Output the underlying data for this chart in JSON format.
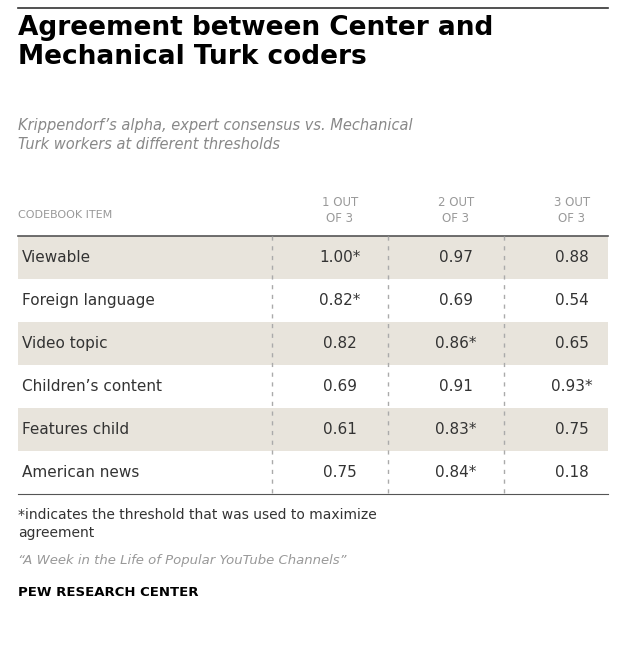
{
  "title": "Agreement between Center and\nMechanical Turk coders",
  "subtitle": "Krippendorf’s alpha, expert consensus vs. Mechanical\nTurk workers at different thresholds",
  "col_header_label": "CODEBOOK ITEM",
  "col_headers": [
    "1 OUT\nOF 3",
    "2 OUT\nOF 3",
    "3 OUT\nOF 3"
  ],
  "rows": [
    {
      "label": "Viewable",
      "values": [
        "1.00*",
        "0.97",
        "0.88"
      ],
      "shaded": true
    },
    {
      "label": "Foreign language",
      "values": [
        "0.82*",
        "0.69",
        "0.54"
      ],
      "shaded": false
    },
    {
      "label": "Video topic",
      "values": [
        "0.82",
        "0.86*",
        "0.65"
      ],
      "shaded": true
    },
    {
      "label": "Children’s content",
      "values": [
        "0.69",
        "0.91",
        "0.93*"
      ],
      "shaded": false
    },
    {
      "label": "Features child",
      "values": [
        "0.61",
        "0.83*",
        "0.75"
      ],
      "shaded": true
    },
    {
      "label": "American news",
      "values": [
        "0.75",
        "0.84*",
        "0.18"
      ],
      "shaded": false
    }
  ],
  "footnote": "*indicates the threshold that was used to maximize\nagreement",
  "source": "“A Week in the Life of Popular YouTube Channels”",
  "branding": "PEW RESEARCH CENTER",
  "bg_color": "#ffffff",
  "shaded_color": "#e8e4dc",
  "title_color": "#000000",
  "subtitle_color": "#888888",
  "header_color": "#999999",
  "value_color": "#333333",
  "label_color": "#333333",
  "footnote_color": "#333333",
  "source_color": "#999999",
  "branding_color": "#000000",
  "border_color": "#555555",
  "dotted_color": "#aaaaaa",
  "top_rule_color": "#333333"
}
